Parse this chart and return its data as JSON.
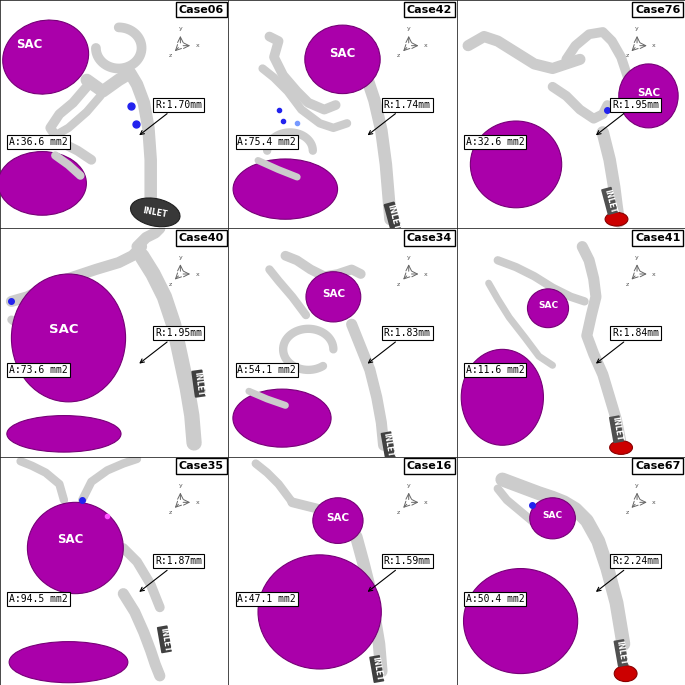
{
  "cases": [
    {
      "name": "Case06",
      "area": "A:36.6 mm2",
      "radius": "R:1.70mm",
      "row": 0,
      "col": 0,
      "has_red_inlet": false
    },
    {
      "name": "Case42",
      "area": "A:75.4 mm2",
      "radius": "R:1.74mm",
      "row": 0,
      "col": 1,
      "has_red_inlet": false
    },
    {
      "name": "Case76",
      "area": "A:32.6 mm2",
      "radius": "R:1.95mm",
      "row": 0,
      "col": 2,
      "has_red_inlet": true
    },
    {
      "name": "Case40",
      "area": "A:73.6 mm2",
      "radius": "R:1.95mm",
      "row": 1,
      "col": 0,
      "has_red_inlet": false
    },
    {
      "name": "Case34",
      "area": "A:54.1 mm2",
      "radius": "R:1.83mm",
      "row": 1,
      "col": 1,
      "has_red_inlet": false
    },
    {
      "name": "Case41",
      "area": "A:11.6 mm2",
      "radius": "R:1.84mm",
      "row": 1,
      "col": 2,
      "has_red_inlet": true
    },
    {
      "name": "Case35",
      "area": "A:94.5 mm2",
      "radius": "R:1.87mm",
      "row": 2,
      "col": 0,
      "has_red_inlet": false
    },
    {
      "name": "Case16",
      "area": "A:47.1 mm2",
      "radius": "R:1.59mm",
      "row": 2,
      "col": 1,
      "has_red_inlet": false
    },
    {
      "name": "Case67",
      "area": "A:50.4 mm2",
      "radius": "R:2.24mm",
      "row": 2,
      "col": 2,
      "has_red_inlet": true
    }
  ],
  "grid_rows": 3,
  "grid_cols": 3,
  "bg_color": "#FFFFFF",
  "sac_color": "#AA00AA",
  "vessel_color": "#CCCCCC",
  "vessel_dark": "#A0A0A0",
  "blue_dot_color": "#2222EE",
  "red_dot_color": "#CC0000",
  "inlet_fill": "#404040",
  "label_fontsize": 7.0,
  "case_fontsize": 8.0,
  "sac_fontsize": 8.5,
  "inlet_fontsize": 5.5,
  "figsize": [
    6.85,
    6.85
  ],
  "dpi": 100
}
